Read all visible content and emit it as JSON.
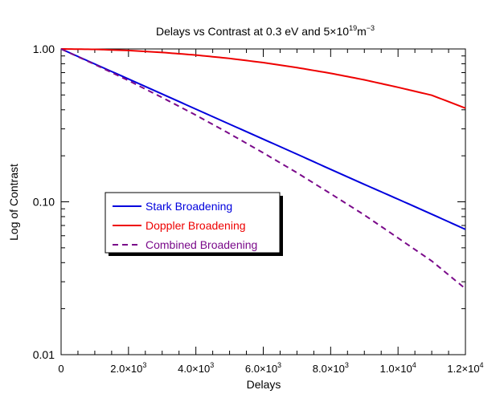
{
  "chart_data": {
    "type": "line",
    "title": "Delays vs Contrast at 0.3 eV and 5×10",
    "title_sup1": "19",
    "title_mid": "m",
    "title_sup2": "−3",
    "xlabel": "Delays",
    "ylabel": "Log of Contrast",
    "xlim": [
      0,
      12000
    ],
    "ylim": [
      0.01,
      1.0
    ],
    "yscale": "log",
    "grid": false,
    "legend_position": "center-left",
    "x_ticks": [
      {
        "value": 0,
        "base": "0",
        "exp": ""
      },
      {
        "value": 2000,
        "base": "2.0×10",
        "exp": "3"
      },
      {
        "value": 4000,
        "base": "4.0×10",
        "exp": "3"
      },
      {
        "value": 6000,
        "base": "6.0×10",
        "exp": "3"
      },
      {
        "value": 8000,
        "base": "8.0×10",
        "exp": "3"
      },
      {
        "value": 10000,
        "base": "1.0×10",
        "exp": "4"
      },
      {
        "value": 12000,
        "base": "1.2×10",
        "exp": "4"
      }
    ],
    "y_ticks": [
      {
        "value": 1.0,
        "label": "1.00"
      },
      {
        "value": 0.1,
        "label": "0.10"
      },
      {
        "value": 0.01,
        "label": "0.01"
      }
    ],
    "x": [
      0,
      1000,
      2000,
      3000,
      4000,
      5000,
      6000,
      7000,
      8000,
      9000,
      10000,
      11000,
      12000
    ],
    "series": [
      {
        "name": "Stark Broadening",
        "color": "#0000dd",
        "dash": "solid",
        "values": [
          1.0,
          0.797,
          0.636,
          0.507,
          0.404,
          0.322,
          0.257,
          0.205,
          0.163,
          0.13,
          0.104,
          0.083,
          0.066
        ]
      },
      {
        "name": "Doppler Broadening",
        "color": "#ee0000",
        "dash": "solid",
        "values": [
          1.0,
          0.994,
          0.977,
          0.949,
          0.912,
          0.867,
          0.814,
          0.755,
          0.693,
          0.628,
          0.561,
          0.498,
          0.41
        ]
      },
      {
        "name": "Combined Broadening",
        "color": "#7a0a8a",
        "dash": "dashed",
        "values": [
          1.0,
          0.792,
          0.621,
          0.481,
          0.369,
          0.279,
          0.209,
          0.155,
          0.113,
          0.082,
          0.058,
          0.041,
          0.027
        ]
      }
    ]
  }
}
